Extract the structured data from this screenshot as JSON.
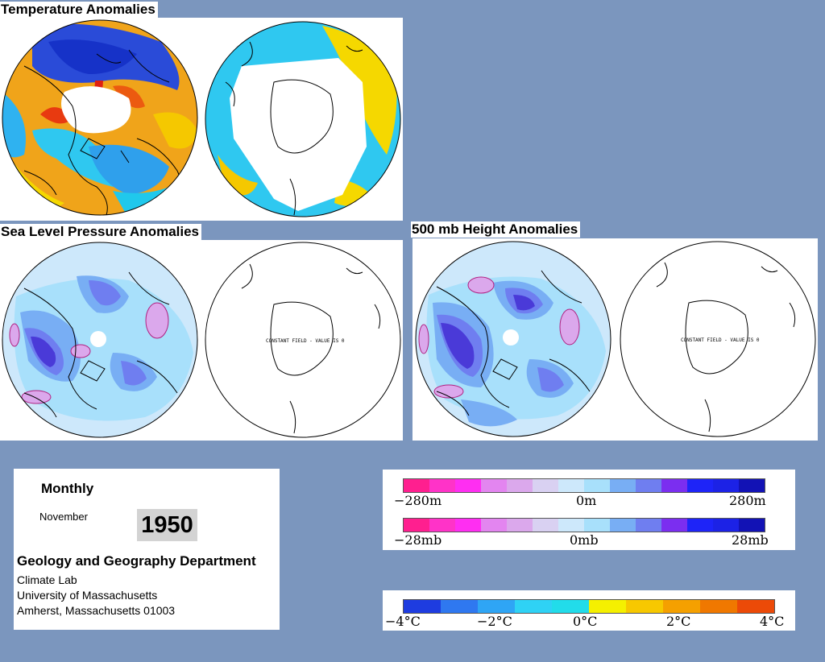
{
  "panels": {
    "temperature": {
      "title": "Temperature Anomalies"
    },
    "slp": {
      "title": "Sea Level Pressure Anomalies",
      "south_note": "CONSTANT FIELD - VALUE IS 0"
    },
    "h500": {
      "title": "500 mb Height Anomalies",
      "south_note": "CONSTANT FIELD - VALUE IS 0"
    }
  },
  "info": {
    "period": "Monthly",
    "month": "November",
    "year": "1950",
    "department": "Geology and Geography Department",
    "lines": [
      "Climate Lab",
      "University of Massachusetts",
      "Amherst, Massachusetts 01003"
    ]
  },
  "legends": {
    "height": {
      "min": "−280m",
      "mid": "0m",
      "max": "280m"
    },
    "pressure": {
      "min": "−28mb",
      "mid": "0mb",
      "max": "28mb"
    },
    "temperature": {
      "t1": "−4°C",
      "t2": "−2°C",
      "t3": "0°C",
      "t4": "2°C",
      "t5": "4°C"
    }
  },
  "colors": {
    "background": "#7b96be",
    "anomaly_scale": [
      "#ff1f8f",
      "#ff33c8",
      "#ff2ef2",
      "#e385f0",
      "#dba8ec",
      "#d9d1f2",
      "#cde8fb",
      "#a8e0fb",
      "#78aef4",
      "#6f7ef0",
      "#7b2ef0",
      "#1e24f8",
      "#1c22e6",
      "#1212b5"
    ],
    "temperature_scale": [
      "#1e3ce0",
      "#2f78f0",
      "#2fa5f5",
      "#2fd2f5",
      "#22dcea",
      "#f5f000",
      "#f7c800",
      "#f5a000",
      "#f07800",
      "#ec4a08"
    ]
  }
}
